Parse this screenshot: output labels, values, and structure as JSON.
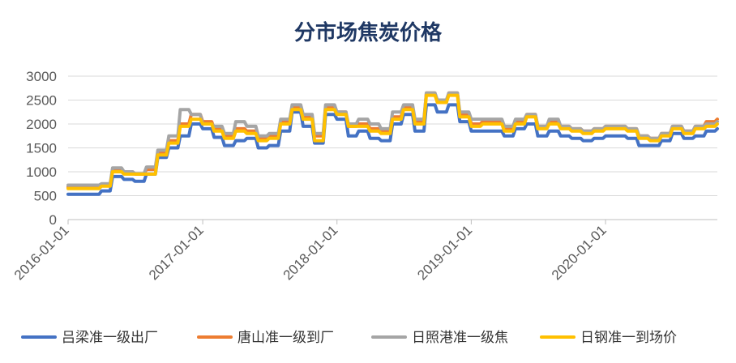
{
  "chart_data": {
    "type": "line",
    "title": "分市场焦炭价格",
    "xlabel": "",
    "ylabel": "",
    "x_range": [
      "2016-01-01",
      "2020-10-31"
    ],
    "x_ticks": [
      "2016-01-01",
      "2017-01-01",
      "2018-01-01",
      "2019-01-01",
      "2020-01-01"
    ],
    "ylim": [
      0,
      3000
    ],
    "y_ticks": [
      0,
      500,
      1000,
      1500,
      2000,
      2500,
      3000
    ],
    "grid": "horizontal",
    "legend_position": "bottom",
    "series": [
      {
        "name": "吕梁准一级出厂",
        "color": "#4472c4",
        "points": [
          [
            "2016-01-01",
            530
          ],
          [
            "2016-03-01",
            530
          ],
          [
            "2016-04-01",
            600
          ],
          [
            "2016-05-01",
            900
          ],
          [
            "2016-06-01",
            840
          ],
          [
            "2016-07-01",
            800
          ],
          [
            "2016-08-01",
            950
          ],
          [
            "2016-09-01",
            1300
          ],
          [
            "2016-10-01",
            1500
          ],
          [
            "2016-11-01",
            1750
          ],
          [
            "2016-12-01",
            2000
          ],
          [
            "2017-01-01",
            1900
          ],
          [
            "2017-02-01",
            1720
          ],
          [
            "2017-03-01",
            1550
          ],
          [
            "2017-04-01",
            1650
          ],
          [
            "2017-05-01",
            1700
          ],
          [
            "2017-06-01",
            1500
          ],
          [
            "2017-07-01",
            1550
          ],
          [
            "2017-08-01",
            1850
          ],
          [
            "2017-09-01",
            2250
          ],
          [
            "2017-10-01",
            1950
          ],
          [
            "2017-11-01",
            1600
          ],
          [
            "2017-12-01",
            2200
          ],
          [
            "2018-01-01",
            2100
          ],
          [
            "2018-02-01",
            1750
          ],
          [
            "2018-03-01",
            1850
          ],
          [
            "2018-04-01",
            1700
          ],
          [
            "2018-05-01",
            1650
          ],
          [
            "2018-06-01",
            2000
          ],
          [
            "2018-07-01",
            2200
          ],
          [
            "2018-08-01",
            1850
          ],
          [
            "2018-09-01",
            2400
          ],
          [
            "2018-10-01",
            2250
          ],
          [
            "2018-11-01",
            2400
          ],
          [
            "2018-12-01",
            2050
          ],
          [
            "2019-01-01",
            1850
          ],
          [
            "2019-02-01",
            1850
          ],
          [
            "2019-03-01",
            1850
          ],
          [
            "2019-04-01",
            1750
          ],
          [
            "2019-05-01",
            1900
          ],
          [
            "2019-06-01",
            2000
          ],
          [
            "2019-07-01",
            1750
          ],
          [
            "2019-08-01",
            1850
          ],
          [
            "2019-09-01",
            1750
          ],
          [
            "2019-10-01",
            1700
          ],
          [
            "2019-11-01",
            1650
          ],
          [
            "2019-12-01",
            1700
          ],
          [
            "2020-01-01",
            1750
          ],
          [
            "2020-02-01",
            1750
          ],
          [
            "2020-03-01",
            1700
          ],
          [
            "2020-04-01",
            1550
          ],
          [
            "2020-05-01",
            1550
          ],
          [
            "2020-06-01",
            1650
          ],
          [
            "2020-07-01",
            1800
          ],
          [
            "2020-08-01",
            1700
          ],
          [
            "2020-09-01",
            1750
          ],
          [
            "2020-10-01",
            1850
          ],
          [
            "2020-10-31",
            1900
          ]
        ]
      },
      {
        "name": "唐山准一级到厂",
        "color": "#ed7d31",
        "points": [
          [
            "2016-01-01",
            680
          ],
          [
            "2016-03-01",
            680
          ],
          [
            "2016-04-01",
            720
          ],
          [
            "2016-05-01",
            1050
          ],
          [
            "2016-06-01",
            1000
          ],
          [
            "2016-07-01",
            950
          ],
          [
            "2016-08-01",
            1050
          ],
          [
            "2016-09-01",
            1400
          ],
          [
            "2016-10-01",
            1650
          ],
          [
            "2016-11-01",
            2000
          ],
          [
            "2016-12-01",
            2200
          ],
          [
            "2017-01-01",
            2050
          ],
          [
            "2017-02-01",
            1900
          ],
          [
            "2017-03-01",
            1750
          ],
          [
            "2017-04-01",
            1900
          ],
          [
            "2017-05-01",
            1850
          ],
          [
            "2017-06-01",
            1700
          ],
          [
            "2017-07-01",
            1750
          ],
          [
            "2017-08-01",
            2050
          ],
          [
            "2017-09-01",
            2350
          ],
          [
            "2017-10-01",
            2150
          ],
          [
            "2017-11-01",
            1750
          ],
          [
            "2017-12-01",
            2350
          ],
          [
            "2018-01-01",
            2250
          ],
          [
            "2018-02-01",
            1950
          ],
          [
            "2018-03-01",
            2000
          ],
          [
            "2018-04-01",
            1900
          ],
          [
            "2018-05-01",
            1850
          ],
          [
            "2018-06-01",
            2150
          ],
          [
            "2018-07-01",
            2350
          ],
          [
            "2018-08-01",
            2050
          ],
          [
            "2018-09-01",
            2650
          ],
          [
            "2018-10-01",
            2450
          ],
          [
            "2018-11-01",
            2650
          ],
          [
            "2018-12-01",
            2200
          ],
          [
            "2019-01-01",
            2000
          ],
          [
            "2019-02-01",
            2050
          ],
          [
            "2019-03-01",
            2050
          ],
          [
            "2019-04-01",
            1900
          ],
          [
            "2019-05-01",
            2050
          ],
          [
            "2019-06-01",
            2200
          ],
          [
            "2019-07-01",
            1950
          ],
          [
            "2019-08-01",
            2050
          ],
          [
            "2019-09-01",
            1950
          ],
          [
            "2019-10-01",
            1900
          ],
          [
            "2019-11-01",
            1850
          ],
          [
            "2019-12-01",
            1900
          ],
          [
            "2020-01-01",
            1950
          ],
          [
            "2020-02-01",
            1950
          ],
          [
            "2020-03-01",
            1900
          ],
          [
            "2020-04-01",
            1750
          ],
          [
            "2020-05-01",
            1700
          ],
          [
            "2020-06-01",
            1800
          ],
          [
            "2020-07-01",
            1950
          ],
          [
            "2020-08-01",
            1850
          ],
          [
            "2020-09-01",
            1950
          ],
          [
            "2020-10-01",
            2050
          ],
          [
            "2020-10-31",
            2100
          ]
        ]
      },
      {
        "name": "日照港准一级焦",
        "color": "#a5a5a5",
        "points": [
          [
            "2016-01-01",
            720
          ],
          [
            "2016-03-01",
            720
          ],
          [
            "2016-04-01",
            750
          ],
          [
            "2016-05-01",
            1080
          ],
          [
            "2016-06-01",
            1000
          ],
          [
            "2016-07-01",
            960
          ],
          [
            "2016-08-01",
            1100
          ],
          [
            "2016-09-01",
            1450
          ],
          [
            "2016-10-01",
            1750
          ],
          [
            "2016-11-01",
            2300
          ],
          [
            "2016-12-01",
            2200
          ],
          [
            "2017-01-01",
            2000
          ],
          [
            "2017-02-01",
            1950
          ],
          [
            "2017-03-01",
            1800
          ],
          [
            "2017-04-01",
            2050
          ],
          [
            "2017-05-01",
            1950
          ],
          [
            "2017-06-01",
            1750
          ],
          [
            "2017-07-01",
            1800
          ],
          [
            "2017-08-01",
            2100
          ],
          [
            "2017-09-01",
            2400
          ],
          [
            "2017-10-01",
            2200
          ],
          [
            "2017-11-01",
            1800
          ],
          [
            "2017-12-01",
            2400
          ],
          [
            "2018-01-01",
            2250
          ],
          [
            "2018-02-01",
            2000
          ],
          [
            "2018-03-01",
            2100
          ],
          [
            "2018-04-01",
            2000
          ],
          [
            "2018-05-01",
            1900
          ],
          [
            "2018-06-01",
            2250
          ],
          [
            "2018-07-01",
            2400
          ],
          [
            "2018-08-01",
            2100
          ],
          [
            "2018-09-01",
            2650
          ],
          [
            "2018-10-01",
            2500
          ],
          [
            "2018-11-01",
            2650
          ],
          [
            "2018-12-01",
            2250
          ],
          [
            "2019-01-01",
            2100
          ],
          [
            "2019-02-01",
            2100
          ],
          [
            "2019-03-01",
            2100
          ],
          [
            "2019-04-01",
            1950
          ],
          [
            "2019-05-01",
            2100
          ],
          [
            "2019-06-01",
            2200
          ],
          [
            "2019-07-01",
            1950
          ],
          [
            "2019-08-01",
            2100
          ],
          [
            "2019-09-01",
            1950
          ],
          [
            "2019-10-01",
            1900
          ],
          [
            "2019-11-01",
            1850
          ],
          [
            "2019-12-01",
            1900
          ],
          [
            "2020-01-01",
            1950
          ],
          [
            "2020-02-01",
            1950
          ],
          [
            "2020-03-01",
            1900
          ],
          [
            "2020-04-01",
            1750
          ],
          [
            "2020-05-01",
            1700
          ],
          [
            "2020-06-01",
            1800
          ],
          [
            "2020-07-01",
            1950
          ],
          [
            "2020-08-01",
            1850
          ],
          [
            "2020-09-01",
            1950
          ],
          [
            "2020-10-01",
            2000
          ],
          [
            "2020-10-31",
            2050
          ]
        ]
      },
      {
        "name": "日钢准一到场价",
        "color": "#ffc000",
        "points": [
          [
            "2016-01-01",
            650
          ],
          [
            "2016-03-01",
            650
          ],
          [
            "2016-04-01",
            700
          ],
          [
            "2016-05-01",
            1000
          ],
          [
            "2016-06-01",
            950
          ],
          [
            "2016-07-01",
            950
          ],
          [
            "2016-08-01",
            950
          ],
          [
            "2016-09-01",
            1350
          ],
          [
            "2016-10-01",
            1600
          ],
          [
            "2016-11-01",
            1950
          ],
          [
            "2016-12-01",
            2100
          ],
          [
            "2017-01-01",
            2000
          ],
          [
            "2017-02-01",
            1850
          ],
          [
            "2017-03-01",
            1700
          ],
          [
            "2017-04-01",
            1850
          ],
          [
            "2017-05-01",
            1800
          ],
          [
            "2017-06-01",
            1650
          ],
          [
            "2017-07-01",
            1700
          ],
          [
            "2017-08-01",
            2000
          ],
          [
            "2017-09-01",
            2300
          ],
          [
            "2017-10-01",
            2100
          ],
          [
            "2017-11-01",
            1650
          ],
          [
            "2017-12-01",
            2300
          ],
          [
            "2018-01-01",
            2200
          ],
          [
            "2018-02-01",
            1950
          ],
          [
            "2018-03-01",
            1950
          ],
          [
            "2018-04-01",
            1850
          ],
          [
            "2018-05-01",
            1800
          ],
          [
            "2018-06-01",
            2100
          ],
          [
            "2018-07-01",
            2300
          ],
          [
            "2018-08-01",
            2000
          ],
          [
            "2018-09-01",
            2600
          ],
          [
            "2018-10-01",
            2450
          ],
          [
            "2018-11-01",
            2600
          ],
          [
            "2018-12-01",
            2150
          ],
          [
            "2019-01-01",
            1950
          ],
          [
            "2019-02-01",
            2000
          ],
          [
            "2019-03-01",
            2000
          ],
          [
            "2019-04-01",
            1850
          ],
          [
            "2019-05-01",
            2000
          ],
          [
            "2019-06-01",
            2150
          ],
          [
            "2019-07-01",
            1900
          ],
          [
            "2019-08-01",
            2000
          ],
          [
            "2019-09-01",
            1900
          ],
          [
            "2019-10-01",
            1850
          ],
          [
            "2019-11-01",
            1800
          ],
          [
            "2019-12-01",
            1850
          ],
          [
            "2020-01-01",
            1900
          ],
          [
            "2020-02-01",
            1900
          ],
          [
            "2020-03-01",
            1850
          ],
          [
            "2020-04-01",
            1700
          ],
          [
            "2020-05-01",
            1650
          ],
          [
            "2020-06-01",
            1750
          ],
          [
            "2020-07-01",
            1900
          ],
          [
            "2020-08-01",
            1800
          ],
          [
            "2020-09-01",
            1900
          ],
          [
            "2020-10-01",
            1950
          ],
          [
            "2020-10-31",
            2000
          ]
        ]
      }
    ]
  }
}
